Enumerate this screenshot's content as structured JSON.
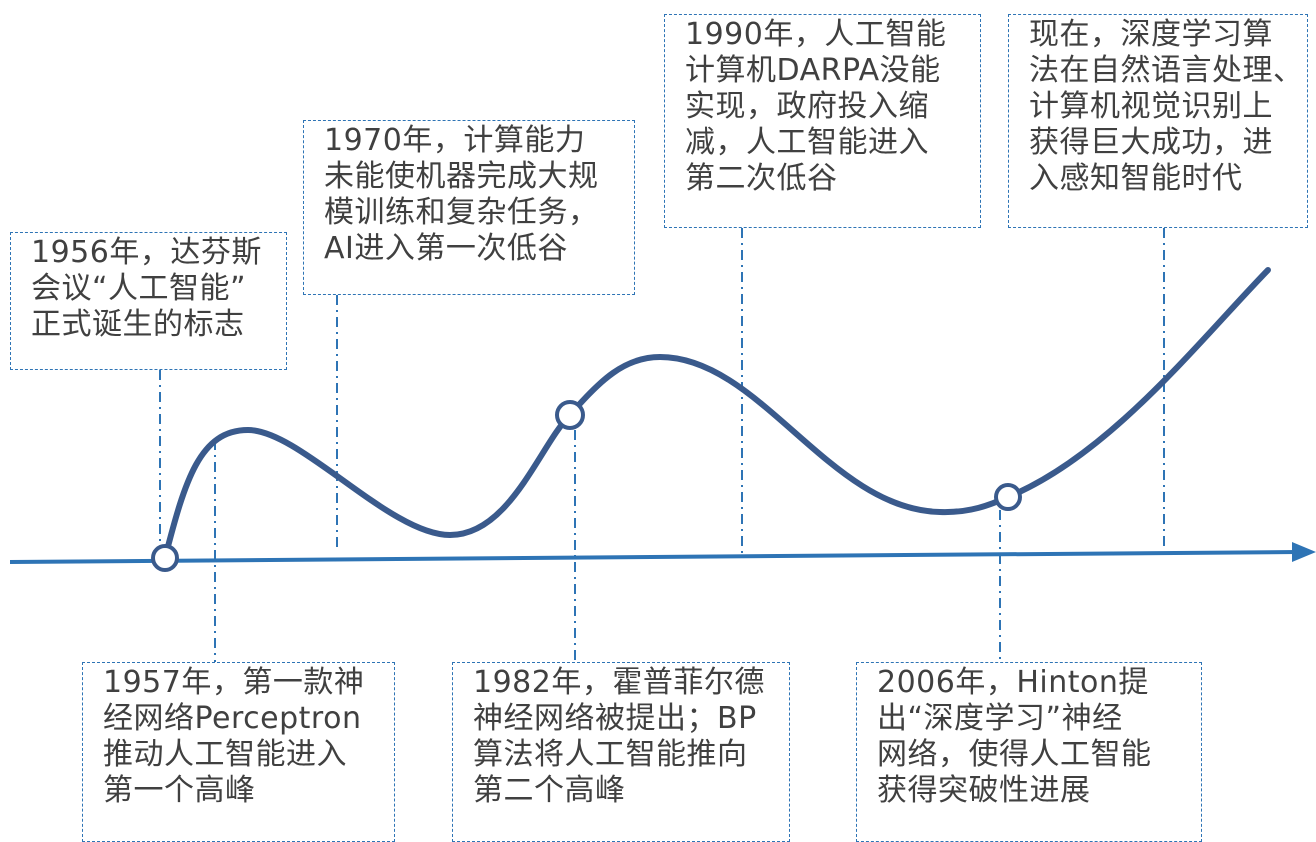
{
  "colors": {
    "curve": "#3a5a8c",
    "axis": "#2e74b5",
    "box_border": "#2e74b5",
    "connector": "#2e74b5",
    "text": "#404040"
  },
  "events_top": [
    {
      "id": "1956",
      "lines": [
        "1956年，达芬斯",
        "会议“人工智能”",
        "正式诞生的标志"
      ]
    },
    {
      "id": "1970",
      "lines": [
        "1970年，计算能力",
        "未能使机器完成大规",
        "模训练和复杂任务，",
        "AI进入第一次低谷"
      ]
    },
    {
      "id": "1990",
      "lines": [
        "1990年，人工智能",
        "计算机DARPA没能",
        "实现，政府投入缩",
        "减，人工智能进入",
        "第二次低谷"
      ]
    },
    {
      "id": "now",
      "lines": [
        "现在，深度学习算",
        "法在自然语言处理、",
        "计算机视觉识别上",
        "获得巨大成功，进",
        "入感知智能时代"
      ]
    }
  ],
  "events_bottom": [
    {
      "id": "1957",
      "lines": [
        "1957年，第一款神",
        "经网络Perceptron",
        "推动人工智能进入",
        "第一个高峰"
      ]
    },
    {
      "id": "1982",
      "lines": [
        "1982年，霍普菲尔德",
        "神经网络被提出；BP",
        "算法将人工智能推向",
        "第二个高峰"
      ]
    },
    {
      "id": "2006",
      "lines": [
        "2006年，Hinton提",
        "出“深度学习”神经",
        "网络，使得人工智能",
        "获得突破性进展"
      ]
    }
  ]
}
